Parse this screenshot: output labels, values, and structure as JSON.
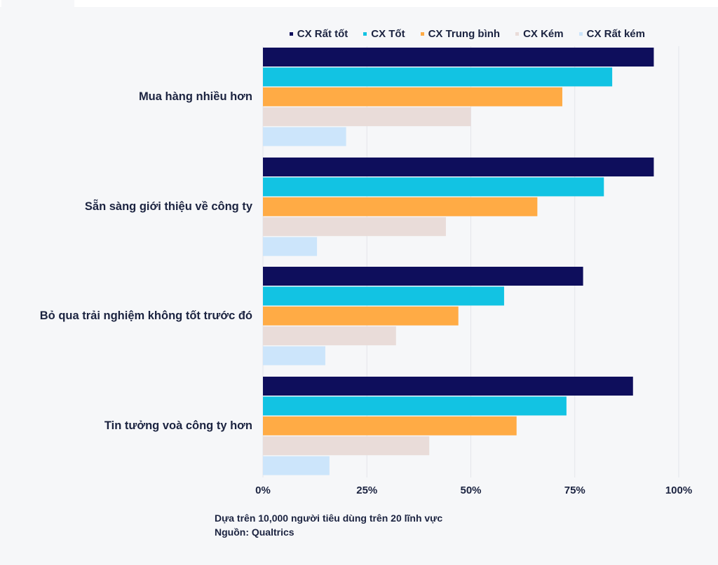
{
  "chart_data": {
    "type": "bar",
    "orientation": "horizontal",
    "categories": [
      "Mua hàng nhiều hơn",
      "Sẵn sàng giới thiệu về công ty",
      "Bỏ qua trải nghiệm không tốt trước đó",
      "Tin tưởng voà công ty hơn"
    ],
    "series": [
      {
        "name": "CX Rất tốt",
        "color": "#0e0e5c",
        "values": [
          94,
          94,
          77,
          89
        ]
      },
      {
        "name": "CX Tốt",
        "color": "#12c3e3",
        "values": [
          84,
          82,
          58,
          73
        ]
      },
      {
        "name": "CX Trung bình",
        "color": "#ffab45",
        "values": [
          72,
          66,
          47,
          61
        ]
      },
      {
        "name": "CX Kém",
        "color": "#e9dcd9",
        "values": [
          50,
          44,
          32,
          40
        ]
      },
      {
        "name": "CX Rất kém",
        "color": "#cce5fb",
        "values": [
          20,
          13,
          15,
          16
        ]
      }
    ],
    "xlim": [
      0,
      100
    ],
    "xticks": [
      "0%",
      "25%",
      "50%",
      "75%",
      "100%"
    ],
    "legend_position": "top-right",
    "grid": true
  },
  "footnote": {
    "line1": "Dựa trên 10,000 người tiêu dùng trên 20 lĩnh vực",
    "line2": "Nguồn: Qualtrics"
  }
}
